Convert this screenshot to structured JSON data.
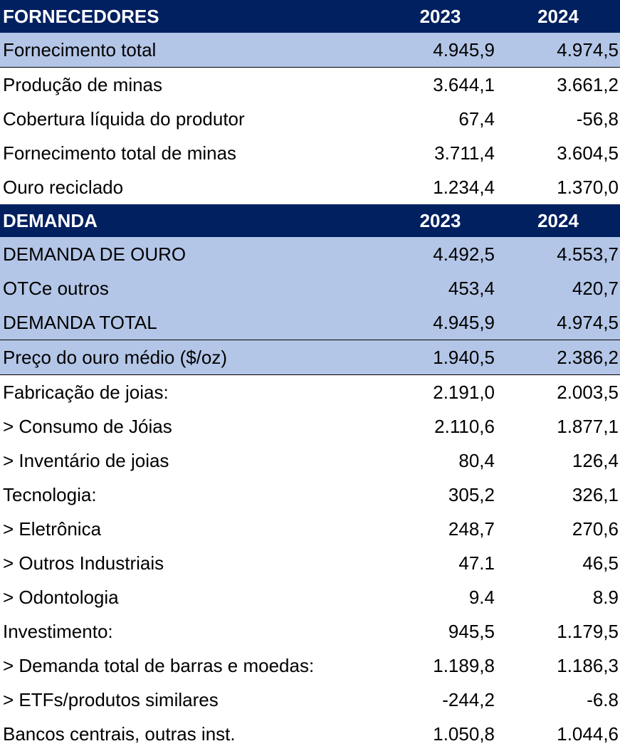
{
  "supply_header": {
    "title": "FORNECEDORES",
    "y1": "2023",
    "y2": "2024"
  },
  "supply_rows": [
    {
      "label": "Fornecimento total",
      "y1": "4.945,9",
      "y2": "4.974,5"
    },
    {
      "label": "Produção de minas",
      "y1": "3.644,1",
      "y2": "3.661,2"
    },
    {
      "label": "Cobertura líquida do produtor",
      "y1": "67,4",
      "y2": "-56,8"
    },
    {
      "label": "Fornecimento total de minas",
      "y1": "3.711,4",
      "y2": "3.604,5"
    },
    {
      "label": "Ouro reciclado",
      "y1": "1.234,4",
      "y2": "1.370,0"
    }
  ],
  "demand_header": {
    "title": "DEMANDA",
    "y1": "2023",
    "y2": "2024"
  },
  "demand_rows": [
    {
      "label": "DEMANDA DE OURO",
      "y1": "4.492,5",
      "y2": "4.553,7"
    },
    {
      "label": "OTCe outros",
      "y1": "453,4",
      "y2": "420,7"
    },
    {
      "label": "DEMANDA TOTAL",
      "y1": "4.945,9",
      "y2": "4.974,5"
    },
    {
      "label": "Preço do ouro médio ($/oz)",
      "y1": "1.940,5",
      "y2": "2.386,2"
    },
    {
      "label": "Fabricação de joias:",
      "y1": "2.191,0",
      "y2": "2.003,5"
    },
    {
      "label": "> Consumo de Jóias",
      "y1": "2.110,6",
      "y2": "1.877,1"
    },
    {
      "label": "> Inventário de joias",
      "y1": "80,4",
      "y2": "126,4"
    },
    {
      "label": "Tecnologia:",
      "y1": "305,2",
      "y2": "326,1"
    },
    {
      "label": "> Eletrônica",
      "y1": "248,7",
      "y2": "270,6"
    },
    {
      "label": "> Outros Industriais",
      "y1": "47.1",
      "y2": "46,5"
    },
    {
      "label": "> Odontologia",
      "y1": "9.4",
      "y2": "8.9"
    },
    {
      "label": "Investimento:",
      "y1": "945,5",
      "y2": "1.179,5"
    },
    {
      "label": "> Demanda total de barras e moedas:",
      "y1": "1.189,8",
      "y2": "1.186,3"
    },
    {
      "label": "> ETFs/produtos similares",
      "y1": "-244,2",
      "y2": "-6.8"
    },
    {
      "label": "Bancos centrais, outras inst.",
      "y1": "1.050,8",
      "y2": "1.044,6"
    }
  ],
  "colors": {
    "header_bg": "#002060",
    "header_text": "#ffffff",
    "highlight_bg": "#b4c6e7"
  }
}
